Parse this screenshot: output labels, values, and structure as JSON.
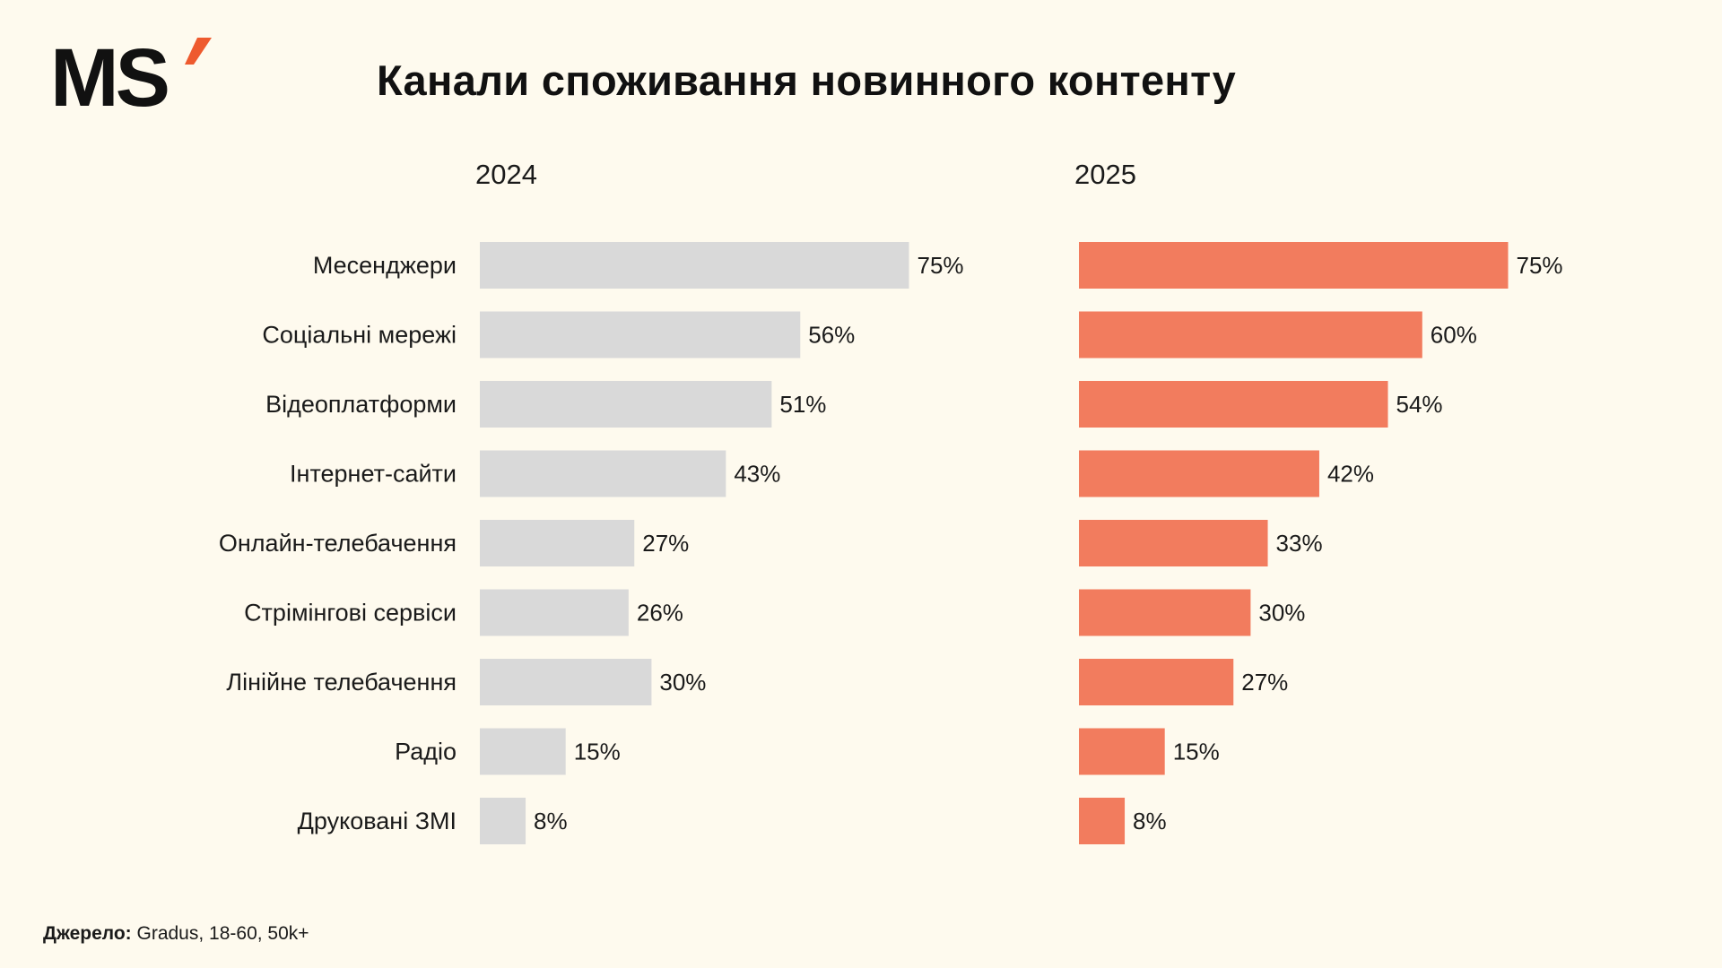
{
  "brand": {
    "logo_text": "MS",
    "accent_color": "#EE5A2E"
  },
  "header": {
    "title": "Канали споживання новинного контенту"
  },
  "chart_data": {
    "type": "bar",
    "orientation": "horizontal",
    "title": "Канали споживання новинного контенту",
    "xlabel": "",
    "ylabel": "",
    "xlim": [
      0,
      100
    ],
    "grid": false,
    "legend": "none",
    "value_suffix": "%",
    "categories": [
      "Месенджери",
      "Соціальні мережі",
      "Відеоплатформи",
      "Інтернет-сайти",
      "Онлайн-телебачення",
      "Стрімінгові сервіси",
      "Лінійне телебачення",
      "Радіо",
      "Друковані ЗМІ"
    ],
    "series": [
      {
        "name": "2024",
        "color": "#D9D9D9",
        "values": [
          75,
          56,
          51,
          43,
          27,
          26,
          30,
          15,
          8
        ],
        "labels": [
          "75%",
          "56%",
          "51%",
          "43%",
          "27%",
          "26%",
          "30%",
          "15%",
          "8%"
        ]
      },
      {
        "name": "2025",
        "color": "#F27C5E",
        "values": [
          75,
          60,
          54,
          42,
          33,
          30,
          27,
          15,
          8
        ],
        "labels": [
          "75%",
          "60%",
          "54%",
          "42%",
          "33%",
          "30%",
          "27%",
          "15%",
          "8%"
        ]
      }
    ]
  },
  "footer": {
    "source_label": "Джерело:",
    "source_text": "Gradus, 18-60, 50k+"
  }
}
